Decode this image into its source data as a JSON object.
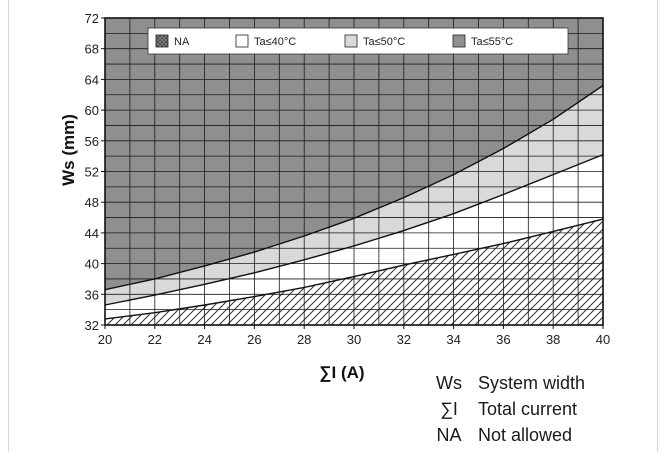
{
  "chart_data": {
    "type": "area",
    "xlabel": "∑I (A)",
    "ylabel": "Ws (mm)",
    "xlim": [
      20,
      40
    ],
    "ylim": [
      32,
      72
    ],
    "x_ticks": [
      "20",
      "22",
      "24",
      "26",
      "28",
      "30",
      "32",
      "34",
      "36",
      "38",
      "40"
    ],
    "y_ticks": [
      "32",
      "36",
      "40",
      "44",
      "48",
      "52",
      "56",
      "60",
      "64",
      "68",
      "72"
    ],
    "grid": true,
    "legend_position": "top",
    "legend": [
      {
        "label": "NA",
        "fill": "#7a7a7a",
        "pattern": "crosshatch"
      },
      {
        "label": "Ta≤40°C",
        "fill": "#ffffff"
      },
      {
        "label": "Ta≤50°C",
        "fill": "#d9d9d9"
      },
      {
        "label": "Ta≤55°C",
        "fill": "#8f8f8f"
      }
    ],
    "x": [
      20,
      22,
      24,
      26,
      28,
      30,
      32,
      34,
      36,
      38,
      40
    ],
    "series": [
      {
        "name": "NA",
        "values": [
          32.8,
          33.6,
          34.6,
          35.7,
          36.9,
          38.3,
          39.8,
          41.2,
          42.6,
          44.2,
          45.8
        ]
      },
      {
        "name": "Ta≤40°C",
        "values": [
          34.6,
          35.9,
          37.3,
          38.8,
          40.5,
          42.3,
          44.3,
          46.5,
          49.0,
          51.6,
          54.2
        ]
      },
      {
        "name": "Ta≤50°C",
        "values": [
          36.6,
          38.0,
          39.7,
          41.5,
          43.6,
          45.9,
          48.6,
          51.6,
          55.0,
          58.8,
          63.2
        ]
      },
      {
        "name": "Ta≤55°C",
        "values": [
          72,
          72,
          72,
          72,
          72,
          72,
          72,
          72,
          72,
          72,
          72
        ]
      }
    ],
    "colors": {
      "na_band": "#ffffff",
      "ta40_band": "#ffffff",
      "ta50_band": "#d9d9d9",
      "ta55_band": "#8f8f8f",
      "grid": "#1a1a1a",
      "hatch": "#333333"
    }
  },
  "glossary": [
    {
      "abbr": "Ws",
      "desc": "System width"
    },
    {
      "abbr": "∑I",
      "desc": "Total current"
    },
    {
      "abbr": "NA",
      "desc": "Not allowed"
    }
  ]
}
